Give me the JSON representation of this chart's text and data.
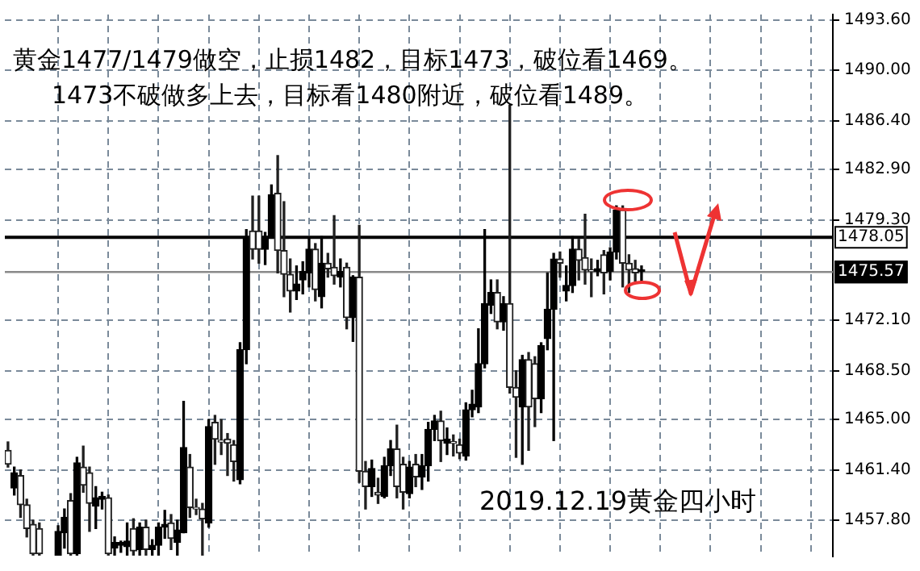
{
  "chart_data": {
    "type": "candlestick",
    "annotations": [
      "黄金1477/1479做空，止损1482，目标1473，破位看1469。",
      "1473不破做多上去，目标看1480附近，破位看1489。",
      "2019.12.19黄金四小时"
    ],
    "categories": [
      null,
      null,
      null,
      null,
      null,
      null,
      null,
      null,
      null,
      null,
      null,
      null,
      null,
      null,
      null,
      null,
      null,
      null,
      null,
      null,
      null,
      null,
      null,
      null,
      null,
      null,
      null,
      null,
      null,
      null,
      null,
      null,
      null,
      null,
      null,
      null,
      null,
      null,
      null,
      null,
      null,
      null,
      null,
      null,
      null,
      null,
      null,
      null,
      null,
      null,
      null,
      null,
      null,
      null,
      null,
      null,
      null,
      null,
      null,
      null,
      null,
      null,
      null,
      null,
      null,
      null,
      null,
      null,
      null,
      null,
      null,
      null,
      null,
      null,
      null,
      null,
      null,
      null,
      null,
      null,
      null,
      null,
      null,
      null,
      null,
      null,
      null,
      null,
      null,
      null,
      null,
      null,
      null,
      null,
      null,
      null,
      null,
      null,
      null,
      null,
      null,
      null,
      null,
      null,
      null,
      null,
      null,
      null,
      null,
      null,
      null,
      null,
      null,
      null,
      null,
      null,
      null,
      null,
      null,
      null,
      null,
      null,
      null,
      null,
      null,
      null,
      null,
      null,
      null,
      null,
      null,
      null
    ],
    "ohlc": [
      [
        1462.8,
        1463.4,
        1461.6,
        1461.8
      ],
      [
        1460.1,
        1461.6,
        1459.6,
        1461.2
      ],
      [
        1461.0,
        1461.4,
        1458.0,
        1458.9
      ],
      [
        1458.9,
        1459.3,
        1456.6,
        1457.2
      ],
      [
        1457.5,
        1457.8,
        1455.3,
        1455.4
      ],
      [
        1457.2,
        1457.6,
        1455.3,
        1455.4
      ],
      null,
      null,
      [
        1455.3,
        1457.4,
        1455.3,
        1457.0
      ],
      [
        1456.9,
        1458.6,
        1455.8,
        1458.0
      ],
      [
        1459.2,
        1459.7,
        1455.3,
        1455.4
      ],
      [
        1455.4,
        1462.3,
        1455.3,
        1461.9
      ],
      [
        1461.6,
        1463.1,
        1459.8,
        1460.3
      ],
      [
        1461.2,
        1461.6,
        1457.0,
        1459.0
      ],
      [
        1458.8,
        1460.2,
        1457.2,
        1459.4
      ],
      [
        1459.3,
        1459.8,
        1458.6,
        1459.5
      ],
      [
        1459.4,
        1459.6,
        1455.3,
        1455.4
      ],
      [
        1455.8,
        1456.6,
        1455.3,
        1456.2
      ],
      [
        1456.0,
        1456.3,
        1455.5,
        1456.2
      ],
      [
        1455.9,
        1457.6,
        1455.3,
        1456.3
      ],
      [
        1457.2,
        1457.9,
        1455.3,
        1455.6
      ],
      [
        1455.7,
        1457.6,
        1455.3,
        1457.3
      ],
      [
        1457.3,
        1457.8,
        1455.3,
        1455.7
      ],
      [
        1455.7,
        1456.4,
        1455.3,
        1456.0
      ],
      [
        1456.0,
        1457.6,
        1455.3,
        1457.3
      ],
      [
        1457.3,
        1458.5,
        1456.5,
        1457.5
      ],
      [
        1457.6,
        1458.2,
        1455.7,
        1456.5
      ],
      [
        1456.2,
        1457.8,
        1455.3,
        1457.1
      ],
      [
        1456.9,
        1466.3,
        1456.9,
        1463.0
      ],
      [
        1461.6,
        1462.5,
        1458.0,
        1458.7
      ],
      [
        1458.7,
        1459.3,
        1458.2,
        1458.6
      ],
      [
        1458.6,
        1459.0,
        1455.3,
        1457.9
      ],
      [
        1457.6,
        1465.0,
        1457.3,
        1464.5
      ],
      [
        1464.8,
        1465.3,
        1461.8,
        1463.6
      ],
      [
        1463.5,
        1465.0,
        1462.5,
        1463.4
      ],
      [
        1463.6,
        1464.0,
        1461.0,
        1463.3
      ],
      [
        1463.2,
        1463.5,
        1460.6,
        1462.0
      ],
      [
        1460.7,
        1470.5,
        1460.4,
        1470.0
      ],
      [
        1470.0,
        1478.6,
        1469.0,
        1478.1
      ],
      [
        1478.5,
        1481.0,
        1476.5,
        1477.2
      ],
      [
        1478.5,
        1481.0,
        1476.2,
        1477.2
      ],
      [
        1477.2,
        1478.4,
        1476.1,
        1478.1
      ],
      [
        1478.1,
        1481.8,
        1478.0,
        1481.1
      ],
      [
        1481.2,
        1483.9,
        1475.5,
        1477.1
      ],
      [
        1477.1,
        1480.6,
        1473.8,
        1475.4
      ],
      [
        1475.4,
        1476.5,
        1472.7,
        1474.2
      ],
      [
        1474.2,
        1476.0,
        1473.6,
        1474.7
      ],
      [
        1475.0,
        1476.3,
        1474.0,
        1475.6
      ],
      [
        1475.5,
        1478.0,
        1474.5,
        1477.2
      ],
      [
        1477.2,
        1477.6,
        1473.5,
        1474.3
      ],
      [
        1473.8,
        1478.1,
        1473.0,
        1476.2
      ],
      [
        1476.2,
        1476.9,
        1475.2,
        1475.8
      ],
      [
        1475.9,
        1479.6,
        1474.7,
        1475.3
      ],
      [
        1475.2,
        1476.5,
        1474.5,
        1475.6
      ],
      [
        1475.9,
        1476.2,
        1471.5,
        1472.3
      ],
      [
        1472.3,
        1475.3,
        1470.6,
        1475.2
      ],
      [
        1475.2,
        1478.9,
        1460.5,
        1461.3
      ],
      [
        1461.3,
        1462.0,
        1458.6,
        1460.2
      ],
      [
        1460.2,
        1462.1,
        1459.5,
        1461.5
      ],
      [
        1459.8,
        1460.8,
        1459.0,
        1459.6
      ],
      [
        1459.5,
        1462.3,
        1459.4,
        1461.7
      ],
      [
        1461.7,
        1463.5,
        1461.0,
        1462.9
      ],
      [
        1462.9,
        1464.6,
        1459.4,
        1460.2
      ],
      [
        1461.8,
        1462.3,
        1458.6,
        1459.8
      ],
      [
        1459.7,
        1462.0,
        1459.4,
        1461.6
      ],
      [
        1461.8,
        1462.5,
        1460.2,
        1460.9
      ],
      [
        1460.9,
        1462.5,
        1460.0,
        1461.7
      ],
      [
        1461.7,
        1464.8,
        1460.6,
        1464.3
      ],
      [
        1464.3,
        1465.3,
        1463.5,
        1464.9
      ],
      [
        1464.9,
        1465.6,
        1462.0,
        1463.5
      ],
      [
        1463.3,
        1464.4,
        1462.5,
        1463.6
      ],
      [
        1463.4,
        1463.9,
        1462.4,
        1463.3
      ],
      [
        1463.2,
        1463.6,
        1462.2,
        1462.6
      ],
      [
        1462.4,
        1466.2,
        1462.1,
        1465.7
      ],
      [
        1465.7,
        1467.1,
        1465.2,
        1466.1
      ],
      [
        1465.9,
        1471.5,
        1465.5,
        1469.0
      ],
      [
        1469.0,
        1478.6,
        1468.7,
        1473.3
      ],
      [
        1473.2,
        1475.0,
        1472.6,
        1474.1
      ],
      [
        1474.1,
        1475.0,
        1471.5,
        1472.0
      ],
      [
        1472.0,
        1473.8,
        1471.4,
        1473.3
      ],
      [
        1473.3,
        1487.5,
        1466.9,
        1467.3
      ],
      [
        1467.3,
        1468.5,
        1462.3,
        1466.6
      ],
      [
        1465.9,
        1469.6,
        1461.8,
        1469.3
      ],
      [
        1469.3,
        1469.8,
        1462.8,
        1465.9
      ],
      [
        1469.0,
        1469.5,
        1464.5,
        1466.5
      ],
      [
        1466.5,
        1470.5,
        1465.5,
        1470.3
      ],
      [
        1470.8,
        1475.5,
        1470.0,
        1472.9
      ],
      [
        1472.9,
        1476.9,
        1463.5,
        1476.5
      ],
      [
        1476.5,
        1477.0,
        1475.2,
        1476.2
      ],
      [
        1474.2,
        1476.0,
        1473.5,
        1474.6
      ],
      [
        1474.6,
        1478.1,
        1474.1,
        1477.2
      ],
      [
        1477.2,
        1477.9,
        1475.0,
        1476.4
      ],
      [
        1476.6,
        1479.7,
        1474.7,
        1475.7
      ],
      [
        1475.7,
        1476.5,
        1473.8,
        1475.6
      ],
      [
        1475.6,
        1476.4,
        1475.3,
        1475.8
      ],
      [
        1476.8,
        1477.1,
        1474.0,
        1475.5
      ],
      [
        1475.6,
        1477.3,
        1475.0,
        1477.0
      ],
      [
        1477.0,
        1480.3,
        1476.5,
        1480.0
      ],
      [
        1480.0,
        1480.3,
        1474.5,
        1476.2
      ],
      [
        1476.2,
        1476.8,
        1474.1,
        1475.7
      ],
      [
        1475.8,
        1476.4,
        1474.9,
        1475.5
      ],
      [
        1475.6,
        1476.0,
        1474.8,
        1475.6
      ],
      null,
      null,
      null,
      null,
      null,
      null,
      null,
      null,
      null,
      null,
      null,
      null,
      null,
      null,
      null,
      null,
      null,
      null,
      null,
      null,
      null,
      null,
      null,
      null,
      null,
      null,
      null,
      null,
      null,
      null
    ],
    "ylim": [
      1455.2,
      1494.0
    ],
    "yticks": [
      {
        "value": 1457.8,
        "label": "1457.80"
      },
      {
        "value": 1461.4,
        "label": "1461.40"
      },
      {
        "value": 1465,
        "label": "1465.00"
      },
      {
        "value": 1468.5,
        "label": "1468.50"
      },
      {
        "value": 1472.1,
        "label": "1472.10"
      },
      {
        "value": 1479.3,
        "label": "1479.30"
      },
      {
        "value": 1482.9,
        "label": "1482.90"
      },
      {
        "value": 1486.4,
        "label": "1486.40"
      },
      {
        "value": 1490,
        "label": "1490.00"
      },
      {
        "value": 1493.6,
        "label": "1493.60"
      }
    ],
    "grid": true,
    "tick_labels": "y",
    "ref_lines": [
      {
        "axis": "y",
        "value": 1478.05,
        "label": "1478.05",
        "color": "#000000"
      },
      {
        "axis": "y",
        "value": 1475.57,
        "label": "1475.57",
        "color": "#8a8a8a"
      }
    ]
  }
}
